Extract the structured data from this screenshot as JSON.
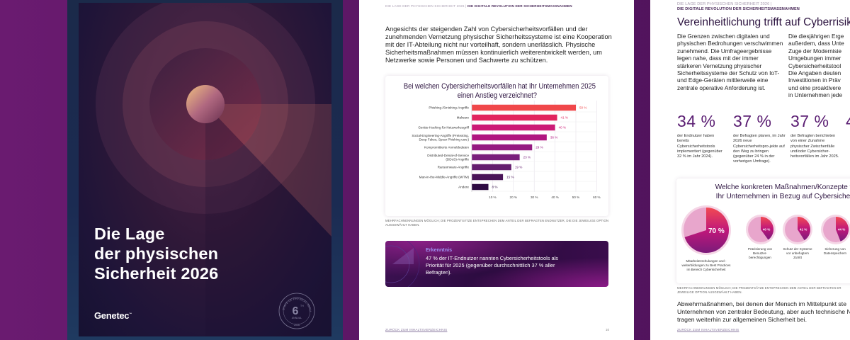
{
  "colors": {
    "background": "#5e1766",
    "title": "#2d1440",
    "stat": "#5a1d72",
    "insight_label": "#9f92f2",
    "bar_gradient": [
      "#f0474a",
      "#e2245e",
      "#cc1a76",
      "#b01680",
      "#951981",
      "#7a1f7c",
      "#641d6e",
      "#4a1458",
      "#2e0b42"
    ]
  },
  "cover": {
    "title_lines": [
      "Die Lage",
      "der physischen",
      "Sicherheit 2026"
    ],
    "logo": "Genetec",
    "logo_tm": "™",
    "badge": {
      "ring_text": "STATE OF PHYSICAL SECURITY",
      "number": "6",
      "suffix": "TH",
      "label": "ANNUAL",
      "year": "2026"
    }
  },
  "middle_page": {
    "running_head": {
      "left": "DIE LAGE DER PHYSISCHEN SICHERHEIT 2026 |",
      "right": "DIE DIGITALE REVOLUTION DER SICHERHEITSMASSNAHMEN"
    },
    "intro": "Angesichts der steigenden Zahl von Cybersicherheitsvorfällen und der zunehmenden Vernetzung physischer Sicherheitssysteme ist eine Kooperation mit der IT-Abteilung nicht nur vorteilhaft, sondern unerlässlich. Physische Sicherheitsmaßnahmen müssen kontinuierlich weiterentwickelt werden, um Netzwerke sowie Personen und Sachwerte zu schützen.",
    "footnote": "Mehrfachnennungen möglich; die Prozentsätze entsprechen dem Anteil der befragten Endnutzer, die die jeweilige Option ausgewählt haben.",
    "insight": {
      "label": "Erkenntnis",
      "text": "47 % der IT-Endnutzer nannten Cybersicherheitstools als Priorität für 2025 (gegenüber durchschnittlich 37 % aller Befragten)."
    },
    "back_link": "ZURÜCK ZUM INHALTSVERZEICHNIS",
    "page_number": "10"
  },
  "right_page": {
    "running_head": {
      "left": "DIE LAGE DER PHYSISCHEN SICHERHEIT 2026 |",
      "right": "DIE DIGITALE REVOLUTION DER SICHERHEITSMASSNAHMEN"
    },
    "title": "Vereinheitlichung trifft auf Cyberrisiken",
    "col1": "Die Grenzen zwischen digitalen und physischen Bedrohungen verschwimmen zunehmend. Die Umfrageergebnisse legen nahe, dass mit der immer stärkeren Vernetzung physischer Sicherheitssysteme der Schutz von IoT- und Edge-Geräten mittlerweile eine zentrale operative Anforderung ist.",
    "col2_lines": [
      "Die diesjährigen Erge",
      "außerdem, dass Unte",
      "Zuge der Modernisie",
      "Umgebungen immer",
      "Cybersicherheitstool",
      "Die Angaben deuten",
      "Investitionen in Präv",
      "und eine proaktivere",
      "in Unternehmen jede"
    ],
    "stats": [
      {
        "value": "34 %",
        "text": "der Endnutzer haben bereits Cybersicherheitstools implementiert (gegenüber 32 % im Jahr 2024)."
      },
      {
        "value": "37 %",
        "text": "der Befragten planen, im Jahr 2026 neue Cybersicherheitspro-jekte auf den Weg zu bringen (gegenüber 24 % in der vorherigen Umfrage)."
      },
      {
        "value": "37 %",
        "text": "der Befragten berichteten von einer Zunahme physischer Zwischenfälle und/oder Cybersicher-heitsvorfällen im Jahr 2025."
      },
      {
        "value": "4",
        "text": ""
      }
    ],
    "footnote_lines": [
      "Mehrfachnennungen möglich; die Prozentsätze entsprechen dem Anteil der befragten Er",
      "jeweilige Option ausgewählt haben."
    ],
    "body_lines": [
      "Abwehrmaßnahmen, bei denen der Mensch im Mittelpunkt ste",
      "Unternehmen von zentraler Bedeutung, aber auch technische N",
      "tragen weiterhin zur allgemeinen Sicherheit bei."
    ],
    "back_link": "ZURÜCK ZUM INHALTSVERZEICHNIS"
  },
  "chart_data": [
    {
      "type": "bar",
      "orientation": "horizontal",
      "title": "Bei welchen Cybersicherheitsvorfällen hat Ihr Unternehmen 2025 einen Anstieg verzeichnet?",
      "categories": [
        "Phishing-/Smishing-Angriffe",
        "Malware",
        "Geräte-Hacking für Netzwerkzugriff",
        "Social-Engineering-Angriffe (Pretexting,|Deep Fakes, Spear Phishing usw.)",
        "Kompromittierte Anmeldedaten",
        "Distributed-Denial-of-Service|(DDoS)-Angriffe",
        "Ransomware-Angriffe",
        "Man-in-the-Middle-Angriffe (MITM)",
        "Andere"
      ],
      "values": [
        50,
        41,
        40,
        36,
        29,
        23,
        19,
        15,
        8
      ],
      "value_labels": [
        "50 %",
        "41 %",
        "40 %",
        "36 %",
        "29 %",
        "23 %",
        "19 %",
        "15 %",
        "8 %"
      ],
      "xticks": [
        "10 %",
        "20 %",
        "30 %",
        "40 %",
        "50 %",
        "60 %"
      ],
      "xlim": [
        0,
        60
      ],
      "grid": true
    },
    {
      "type": "pie",
      "title": "Welche konkreten Maßnahmen/Konzepte ve|Ihr Unternehmen in Bezug auf Cybersicherh",
      "items": [
        {
          "label": "Mitarbeiterschulungen und -weiterbildungen zu Best Practices im Bereich Cybersicherheit",
          "value": 70,
          "value_label": "70 %"
        },
        {
          "label": "Präzisierung von Benutzer-berechtigungen",
          "value": 40,
          "value_label": "40 %"
        },
        {
          "label": "Schutz der Systeme vor unbefugtem Zutritt",
          "value": 41,
          "value_label": "41 %"
        },
        {
          "label": "Sicherung von Datenspeichern",
          "value": 44,
          "value_label": "44 %"
        }
      ]
    }
  ]
}
